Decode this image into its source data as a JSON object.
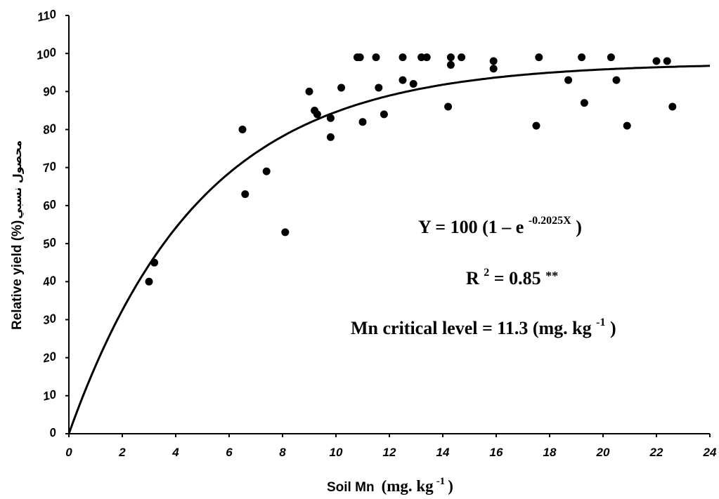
{
  "chart_data": {
    "type": "scatter",
    "xlabel": {
      "main": "Soil Mn",
      "unit": "(mg. kg",
      "sup": "-1",
      "close": ")"
    },
    "ylabel": "Relative yield (%)",
    "ylabel_arabic": "محصول نسبي",
    "xlim": [
      0,
      24
    ],
    "ylim": [
      0,
      110
    ],
    "x_ticks": [
      "0",
      "2",
      "4",
      "6",
      "8",
      "10",
      "12",
      "14",
      "16",
      "18",
      "20",
      "22",
      "24"
    ],
    "y_ticks": [
      "0",
      "10",
      "20",
      "30",
      "40",
      "50",
      "60",
      "70",
      "80",
      "90",
      "100",
      "110"
    ],
    "grid": false,
    "series": [
      {
        "type": "scatter",
        "points": [
          [
            3.0,
            40
          ],
          [
            3.2,
            45
          ],
          [
            6.5,
            80
          ],
          [
            6.6,
            63
          ],
          [
            7.4,
            69
          ],
          [
            8.1,
            53
          ],
          [
            9.0,
            90
          ],
          [
            9.2,
            85
          ],
          [
            9.3,
            84
          ],
          [
            9.8,
            83
          ],
          [
            9.8,
            78
          ],
          [
            10.2,
            91
          ],
          [
            10.8,
            99
          ],
          [
            10.9,
            99
          ],
          [
            11.0,
            82
          ],
          [
            11.5,
            99
          ],
          [
            11.6,
            91
          ],
          [
            11.8,
            84
          ],
          [
            12.5,
            93
          ],
          [
            12.5,
            99
          ],
          [
            12.9,
            92
          ],
          [
            13.2,
            99
          ],
          [
            13.4,
            99
          ],
          [
            14.2,
            86
          ],
          [
            14.3,
            99
          ],
          [
            14.3,
            97
          ],
          [
            14.7,
            99
          ],
          [
            15.9,
            98
          ],
          [
            15.9,
            96
          ],
          [
            17.5,
            81
          ],
          [
            17.6,
            99
          ],
          [
            18.7,
            93
          ],
          [
            19.2,
            99
          ],
          [
            19.3,
            87
          ],
          [
            20.3,
            99
          ],
          [
            20.5,
            93
          ],
          [
            20.9,
            81
          ],
          [
            22.0,
            98
          ],
          [
            22.4,
            98
          ],
          [
            22.6,
            86
          ]
        ]
      },
      {
        "type": "line",
        "equation": "Y = 100 (1 − e^(−0.2025X))",
        "coefficient": 0.2025,
        "plateau": 97.5
      }
    ],
    "annotations": {
      "equation": {
        "lhs": "Y = 100 (1 – e",
        "exp": "-0.2025X",
        "rhs": ")"
      },
      "r2": {
        "lhs": "R",
        "sup": "2",
        "rhs": " = 0.85",
        "stars": "**"
      },
      "critical": {
        "lhs": "Mn critical level = 11.3 (mg. kg",
        "sup": "-1",
        "rhs": ")"
      }
    }
  }
}
